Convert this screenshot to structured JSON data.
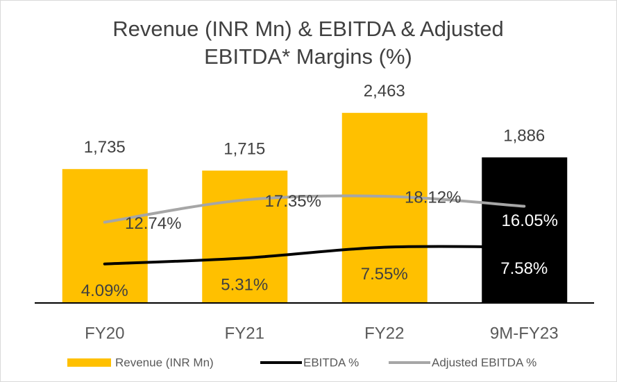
{
  "chart_data": {
    "type": "bar",
    "title": "Revenue (INR Mn) & EBITDA & Adjusted EBITDA* Margins (%)",
    "categories": [
      "FY20",
      "FY21",
      "FY22",
      "9M-FY23"
    ],
    "ylim": [
      0,
      3000
    ],
    "y2lim": [
      -4,
      44
    ],
    "series": [
      {
        "name": "Revenue (INR Mn)",
        "type": "bar",
        "color": "#FFC000",
        "colors": [
          "#FFC000",
          "#FFC000",
          "#FFC000",
          "#000000"
        ],
        "values": [
          1735,
          1715,
          2463,
          1886
        ],
        "value_labels": [
          "1,735",
          "1,715",
          "2,463",
          "1,886"
        ]
      },
      {
        "name": "EBITDA %",
        "type": "line",
        "axis": "y2",
        "color": "#000000",
        "values": [
          4.09,
          5.31,
          7.55,
          7.58
        ],
        "value_labels": [
          "4.09%",
          "5.31%",
          "7.55%",
          "7.58%"
        ]
      },
      {
        "name": "Adjusted EBITDA %",
        "type": "line",
        "axis": "y2",
        "color": "#A6A6A6",
        "values": [
          12.74,
          17.35,
          18.12,
          16.05
        ],
        "value_labels": [
          "12.74%",
          "17.35%",
          "18.12%",
          "16.05%"
        ]
      }
    ]
  }
}
